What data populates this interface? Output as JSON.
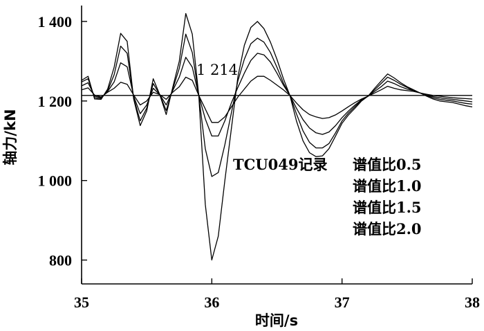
{
  "chart_data": {
    "type": "line",
    "xlabel": "时间/s",
    "ylabel": "轴力/kN",
    "xlim": [
      35,
      38
    ],
    "ylim": [
      740,
      1440
    ],
    "xticks": [
      35,
      36,
      37,
      38
    ],
    "yticks": [
      800,
      1000,
      1200,
      1400
    ],
    "xtick_labels": [
      "35",
      "36",
      "37",
      "38"
    ],
    "ytick_labels": [
      "800",
      "1 000",
      "1 200",
      "1 400"
    ],
    "reference_line": {
      "value": 1214,
      "label": "1 214"
    },
    "legend": {
      "title": "TCU049记录",
      "entries": [
        "谱值比0.5",
        "谱值比1.0",
        "谱值比1.5",
        "谱值比2.0"
      ]
    },
    "x": [
      35.0,
      35.05,
      35.1,
      35.15,
      35.2,
      35.25,
      35.3,
      35.35,
      35.4,
      35.45,
      35.5,
      35.55,
      35.6,
      35.65,
      35.7,
      35.75,
      35.8,
      35.85,
      35.9,
      35.95,
      36.0,
      36.05,
      36.1,
      36.15,
      36.2,
      36.25,
      36.3,
      36.35,
      36.4,
      36.45,
      36.5,
      36.55,
      36.6,
      36.65,
      36.7,
      36.75,
      36.8,
      36.85,
      36.9,
      36.95,
      37.0,
      37.05,
      37.1,
      37.15,
      37.2,
      37.25,
      37.3,
      37.35,
      37.4,
      37.45,
      37.5,
      37.55,
      37.6,
      37.65,
      37.7,
      37.75,
      37.8,
      37.85,
      37.9,
      37.95,
      38.0
    ],
    "series": [
      {
        "name": "谱值比0.5",
        "values": [
          1228,
          1233,
          1215,
          1210,
          1222,
          1232,
          1247,
          1242,
          1215,
          1190,
          1200,
          1222,
          1216,
          1204,
          1222,
          1236,
          1260,
          1252,
          1214,
          1180,
          1146,
          1146,
          1160,
          1185,
          1210,
          1230,
          1250,
          1262,
          1262,
          1252,
          1240,
          1228,
          1214,
          1195,
          1178,
          1166,
          1160,
          1156,
          1158,
          1165,
          1175,
          1186,
          1196,
          1205,
          1212,
          1220,
          1228,
          1237,
          1232,
          1228,
          1226,
          1224,
          1220,
          1217,
          1214,
          1212,
          1210,
          1208,
          1207,
          1206,
          1205
        ]
      },
      {
        "name": "谱值比1.0",
        "values": [
          1238,
          1246,
          1212,
          1208,
          1224,
          1248,
          1296,
          1286,
          1212,
          1168,
          1190,
          1232,
          1216,
          1190,
          1226,
          1260,
          1310,
          1285,
          1214,
          1155,
          1112,
          1112,
          1150,
          1195,
          1234,
          1270,
          1302,
          1320,
          1316,
          1298,
          1270,
          1240,
          1214,
          1182,
          1153,
          1132,
          1120,
          1116,
          1122,
          1138,
          1158,
          1175,
          1190,
          1203,
          1212,
          1224,
          1236,
          1250,
          1244,
          1236,
          1230,
          1226,
          1220,
          1215,
          1211,
          1208,
          1206,
          1204,
          1202,
          1200,
          1198
        ]
      },
      {
        "name": "谱值比1.5",
        "values": [
          1248,
          1256,
          1208,
          1206,
          1226,
          1266,
          1338,
          1320,
          1208,
          1150,
          1182,
          1244,
          1216,
          1176,
          1230,
          1282,
          1368,
          1322,
          1214,
          1080,
          1010,
          1020,
          1090,
          1170,
          1250,
          1305,
          1344,
          1358,
          1348,
          1322,
          1285,
          1245,
          1214,
          1168,
          1125,
          1096,
          1082,
          1082,
          1093,
          1120,
          1150,
          1170,
          1186,
          1202,
          1212,
          1228,
          1244,
          1260,
          1252,
          1242,
          1234,
          1226,
          1220,
          1214,
          1208,
          1204,
          1202,
          1200,
          1197,
          1194,
          1192
        ]
      },
      {
        "name": "谱值比2.0",
        "values": [
          1252,
          1262,
          1205,
          1204,
          1230,
          1285,
          1370,
          1350,
          1205,
          1138,
          1175,
          1256,
          1216,
          1166,
          1234,
          1300,
          1420,
          1368,
          1214,
          940,
          800,
          860,
          1000,
          1130,
          1260,
          1340,
          1385,
          1400,
          1382,
          1348,
          1305,
          1256,
          1214,
          1150,
          1100,
          1070,
          1060,
          1062,
          1080,
          1112,
          1144,
          1165,
          1182,
          1200,
          1212,
          1232,
          1250,
          1268,
          1258,
          1246,
          1236,
          1228,
          1220,
          1212,
          1205,
          1200,
          1198,
          1196,
          1192,
          1188,
          1185
        ]
      }
    ]
  }
}
